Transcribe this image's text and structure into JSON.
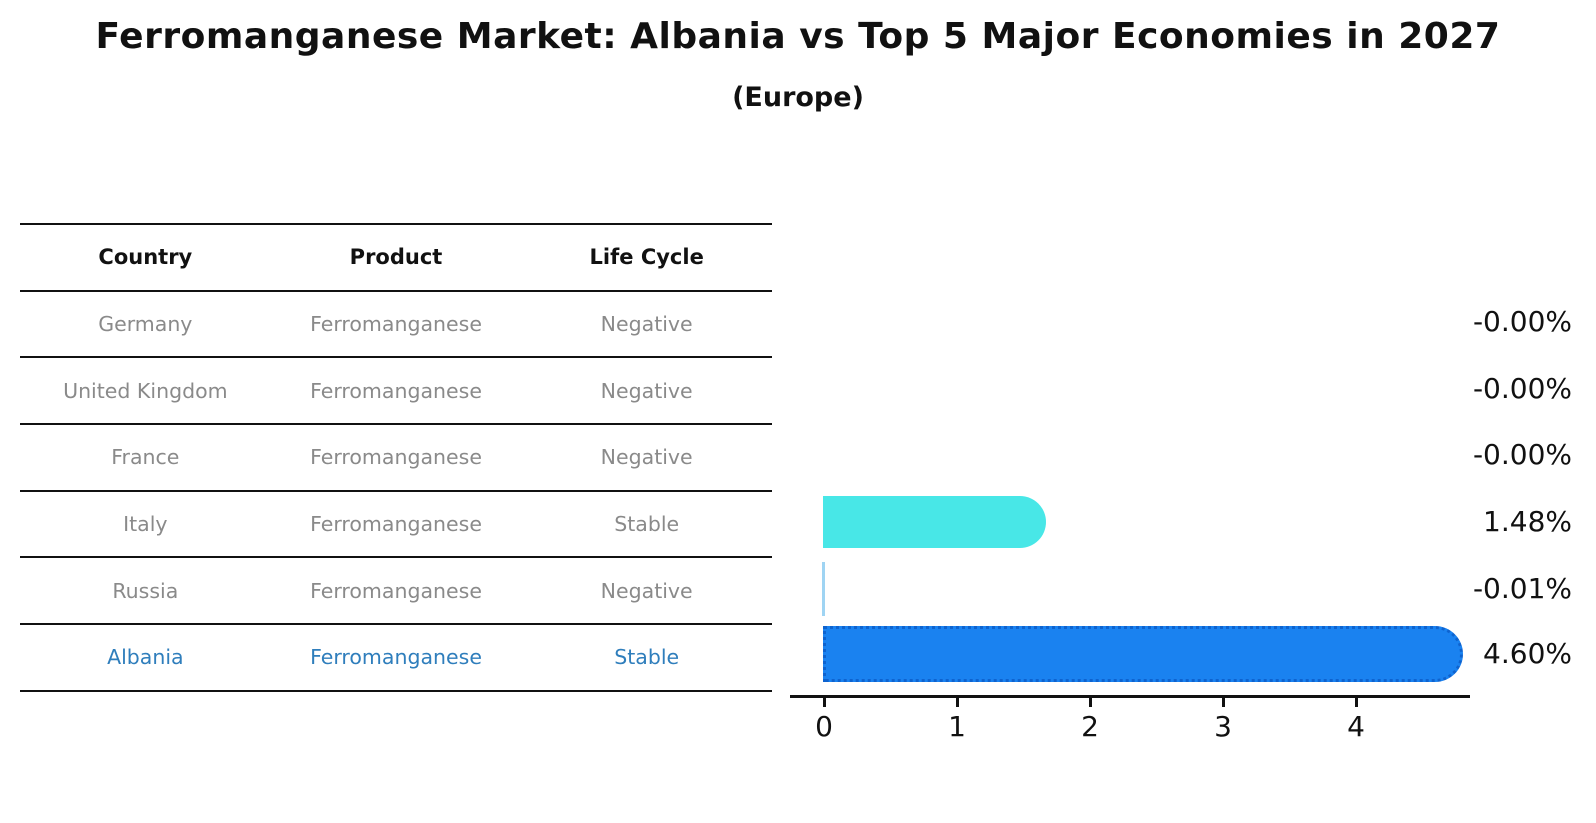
{
  "title": "Ferromanganese Market: Albania vs Top 5 Major Economies in 2027",
  "subtitle": "(Europe)",
  "table": {
    "headers": [
      "Country",
      "Product",
      "Life Cycle"
    ],
    "rows": [
      {
        "country": "Germany",
        "product": "Ferromanganese",
        "life_cycle": "Negative",
        "value": 0,
        "value_label": "-0.00%",
        "bar": "none",
        "highlight": false
      },
      {
        "country": "United Kingdom",
        "product": "Ferromanganese",
        "life_cycle": "Negative",
        "value": 0,
        "value_label": "-0.00%",
        "bar": "none",
        "highlight": false
      },
      {
        "country": "France",
        "product": "Ferromanganese",
        "life_cycle": "Negative",
        "value": 0,
        "value_label": "-0.00%",
        "bar": "none",
        "highlight": false
      },
      {
        "country": "Italy",
        "product": "Ferromanganese",
        "life_cycle": "Stable",
        "value": 1.48,
        "value_label": "1.48%",
        "bar": "solid",
        "highlight": false
      },
      {
        "country": "Russia",
        "product": "Ferromanganese",
        "life_cycle": "Negative",
        "value": -0.01,
        "value_label": "-0.01%",
        "bar": "sliver",
        "highlight": false
      },
      {
        "country": "Albania",
        "product": "Ferromanganese",
        "life_cycle": "Stable",
        "value": 4.6,
        "value_label": "4.60%",
        "bar": "dotted",
        "highlight": true
      }
    ]
  },
  "chart_data": {
    "type": "bar",
    "orientation": "horizontal",
    "title": "Ferromanganese Market: Albania vs Top 5 Major Economies in 2027 (Europe)",
    "categories": [
      "Germany",
      "United Kingdom",
      "France",
      "Italy",
      "Russia",
      "Albania"
    ],
    "values": [
      -0.0,
      -0.0,
      -0.0,
      1.48,
      -0.01,
      4.6
    ],
    "value_labels": [
      "-0.00%",
      "-0.00%",
      "-0.00%",
      "1.48%",
      "-0.01%",
      "4.60%"
    ],
    "xlabel": "",
    "ylabel": "",
    "xlim": [
      0,
      4.85
    ],
    "xticks": [
      0,
      1,
      2,
      3,
      4
    ],
    "xtick_labels": [
      "0",
      "1",
      "2",
      "3",
      "4"
    ],
    "grid": false,
    "legend": "none"
  },
  "colors": {
    "bar_cyan": "#48e7e7",
    "bar_blue": "#1a82f0",
    "bar_blue_border": "#0e63cf",
    "bar_sliver": "#9fd4f3",
    "highlight_text": "#2f7ebc",
    "muted_text": "#8a8a8a",
    "axis": "#111111",
    "background": "#ffffff"
  }
}
